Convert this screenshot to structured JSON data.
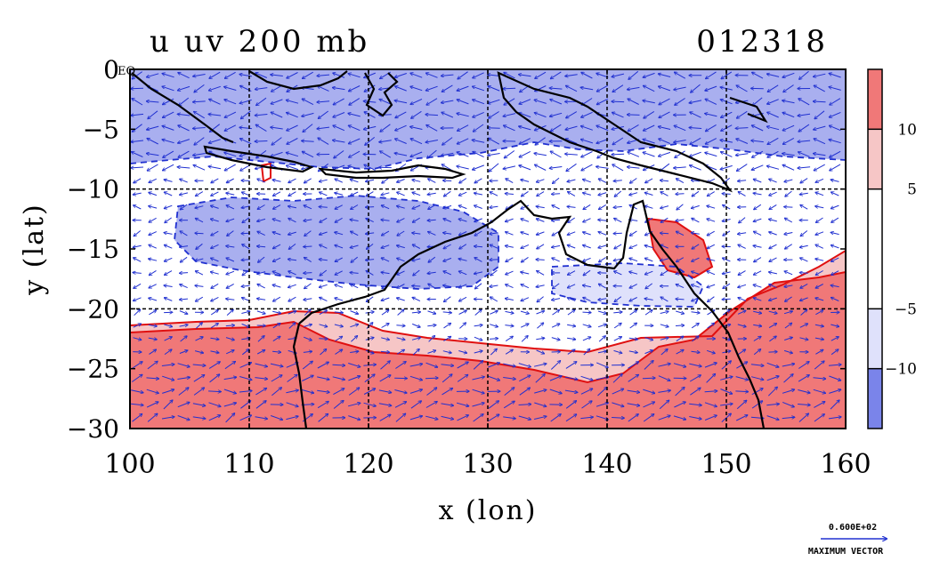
{
  "chart_data": {
    "type": "heatmap",
    "title": "u uv 200 mb",
    "date_label": "012318",
    "xlabel": "x (lon)",
    "ylabel": "y (lat)",
    "xlim": [
      100,
      160
    ],
    "ylim": [
      -30,
      0
    ],
    "x_ticks": [
      "100",
      "110",
      "120",
      "130",
      "140",
      "150",
      "160"
    ],
    "x_tick_values": [
      100,
      110,
      120,
      130,
      140,
      150,
      160
    ],
    "y_ticks": [
      "0",
      "−5",
      "−10",
      "−15",
      "−20",
      "−25",
      "−30"
    ],
    "y_tick_values": [
      0,
      -5,
      -10,
      -15,
      -20,
      -25,
      -30
    ],
    "equator_label": "EQ",
    "grid": true,
    "grid_lines_x": [
      110,
      120,
      130,
      140,
      150
    ],
    "grid_lines_y": [
      -10,
      -20
    ],
    "colorbar": {
      "position": "right",
      "levels": [
        -15,
        -10,
        -5,
        5,
        10,
        15
      ],
      "tick_labels": [
        "10",
        "5",
        "−5",
        "−10"
      ],
      "tick_values": [
        10,
        5,
        -5,
        -10
      ],
      "colors": [
        "#7a84ea",
        "#dfe1fb",
        "#ffffff",
        "#f6c6c6",
        "#f07878"
      ]
    },
    "series": [
      {
        "name": "u",
        "contour_color": "#e01010",
        "notes": "shaded u wind"
      },
      {
        "name": "uv",
        "color": "#2030d0",
        "notes": "wind vectors"
      }
    ],
    "regions": [
      {
        "level": 10,
        "lon": [
          100,
          160
        ],
        "lat": [
          -30,
          -21
        ],
        "desc": "strong westerlies south of about 21S"
      },
      {
        "level": 5,
        "lon": [
          100,
          160
        ],
        "lat": [
          -24,
          -17
        ],
        "desc": "moderate westerlies band"
      },
      {
        "level": -5,
        "lon": [
          100,
          160
        ],
        "lat": [
          -20,
          -9
        ],
        "desc": "weak easterlies over Australia"
      },
      {
        "level": -10,
        "lon": [
          100,
          160
        ],
        "lat": [
          -9,
          0
        ],
        "desc": "easterlies near the Maritime Continent"
      }
    ],
    "legend": {
      "reference_vector_value": "0.600E+02",
      "reference_vector_label": "MAXIMUM VECTOR"
    }
  }
}
